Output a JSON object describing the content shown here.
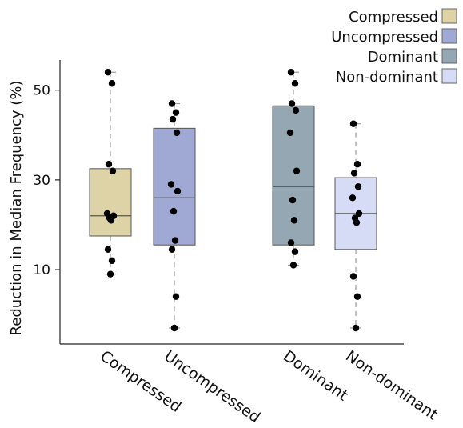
{
  "chart_data": {
    "type": "box",
    "title": "",
    "xlabel": "",
    "ylabel": "Reduction in Median Frequency (%)",
    "ylim": [
      -3,
      56
    ],
    "yticks": [
      10,
      30,
      50
    ],
    "grid": false,
    "legend_position": "top-right",
    "categories": [
      "Compressed",
      "Uncompressed",
      "Dominant",
      "Non-dominant"
    ],
    "series": [
      {
        "name": "Compressed",
        "color": "#ddd3a6",
        "box": {
          "min": 9,
          "q1": 17.5,
          "median": 22,
          "q3": 32.5,
          "max": 54
        },
        "points": [
          54,
          51.5,
          33.5,
          32,
          22.5,
          22,
          21.5,
          21,
          14.5,
          12,
          9
        ]
      },
      {
        "name": "Uncompressed",
        "color": "#a0a9d3",
        "box": {
          "min": -3,
          "q1": 15.5,
          "median": 26,
          "q3": 41.5,
          "max": 47
        },
        "points": [
          47,
          45,
          43.5,
          40.5,
          29,
          27.5,
          23,
          16.5,
          14.5,
          4,
          -3
        ]
      },
      {
        "name": "Dominant",
        "color": "#95a7b3",
        "box": {
          "min": 11,
          "q1": 15.5,
          "median": 28.5,
          "q3": 46.5,
          "max": 54
        },
        "points": [
          54,
          51.5,
          47,
          45.5,
          40.5,
          32,
          25.5,
          21,
          16,
          14,
          11
        ]
      },
      {
        "name": "Non-dominant",
        "color": "#d6dcf5",
        "box": {
          "min": -3,
          "q1": 14.5,
          "median": 22.5,
          "q3": 30.5,
          "max": 42.5
        },
        "points": [
          42.5,
          33.5,
          31.5,
          28.5,
          26,
          22.5,
          21.5,
          20.5,
          8.5,
          4,
          -3
        ]
      }
    ]
  }
}
